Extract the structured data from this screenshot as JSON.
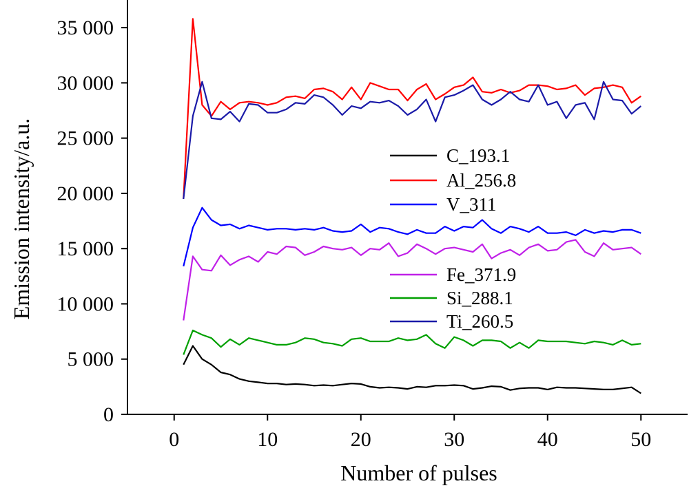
{
  "chart_data": {
    "type": "line",
    "title": "",
    "xlabel": "Number of pulses",
    "ylabel": "Emission intensity/a.u.",
    "xlim": [
      -5,
      55
    ],
    "ylim": [
      0,
      37500
    ],
    "xticks": [
      0,
      10,
      20,
      30,
      40,
      50
    ],
    "xtick_labels": [
      "0",
      "10",
      "20",
      "30",
      "40",
      "50"
    ],
    "yticks": [
      0,
      5000,
      10000,
      15000,
      20000,
      25000,
      30000,
      35000
    ],
    "ytick_labels": [
      "0",
      "5 000",
      "10 000",
      "15 000",
      "20 000",
      "25 000",
      "30 000",
      "35 000"
    ],
    "grid": false,
    "legend_placement": "inside, two groups (upper-center and middle-center)",
    "x": [
      1,
      2,
      3,
      4,
      5,
      6,
      7,
      8,
      9,
      10,
      11,
      12,
      13,
      14,
      15,
      16,
      17,
      18,
      19,
      20,
      21,
      22,
      23,
      24,
      25,
      26,
      27,
      28,
      29,
      30,
      31,
      32,
      33,
      34,
      35,
      36,
      37,
      38,
      39,
      40,
      41,
      42,
      43,
      44,
      45,
      46,
      47,
      48,
      49,
      50
    ],
    "series": [
      {
        "name": "C_193.1",
        "color": "#000000",
        "values": [
          4500,
          6200,
          5000,
          4500,
          3800,
          3600,
          3200,
          3000,
          2900,
          2800,
          2800,
          2700,
          2750,
          2700,
          2600,
          2650,
          2600,
          2700,
          2800,
          2750,
          2500,
          2400,
          2450,
          2400,
          2300,
          2500,
          2450,
          2600,
          2600,
          2650,
          2600,
          2300,
          2400,
          2550,
          2500,
          2200,
          2350,
          2400,
          2400,
          2250,
          2450,
          2400,
          2400,
          2350,
          2300,
          2250,
          2250,
          2350,
          2450,
          1900
        ]
      },
      {
        "name": "Al_256.8",
        "color": "#ff0000",
        "values": [
          19500,
          35800,
          28000,
          27000,
          28300,
          27600,
          28200,
          28300,
          28200,
          28000,
          28200,
          28700,
          28800,
          28600,
          29400,
          29500,
          29200,
          28500,
          29600,
          28500,
          30000,
          29700,
          29400,
          29400,
          28400,
          29400,
          29900,
          28500,
          29000,
          29600,
          29800,
          30500,
          29200,
          29100,
          29400,
          29100,
          29300,
          29800,
          29800,
          29700,
          29400,
          29500,
          29800,
          28900,
          29500,
          29600,
          29800,
          29600,
          28200,
          28800
        ]
      },
      {
        "name": "V_311",
        "color": "#0000ff",
        "values": [
          13400,
          16900,
          18700,
          17600,
          17100,
          17200,
          16800,
          17100,
          16900,
          16700,
          16800,
          16800,
          16700,
          16800,
          16700,
          16900,
          16600,
          16500,
          16600,
          17200,
          16500,
          16900,
          16800,
          16500,
          16300,
          16700,
          16400,
          16400,
          17000,
          16600,
          17000,
          16900,
          17600,
          16800,
          16400,
          17000,
          16800,
          16500,
          17000,
          16400,
          16400,
          16500,
          16200,
          16700,
          16400,
          16600,
          16500,
          16700,
          16700,
          16400
        ]
      },
      {
        "name": "Fe_371.9",
        "color": "#c020e8",
        "values": [
          8500,
          14300,
          13100,
          13000,
          14400,
          13500,
          14000,
          14300,
          13800,
          14700,
          14500,
          15200,
          15100,
          14400,
          14700,
          15200,
          15000,
          14900,
          15100,
          14400,
          15000,
          14900,
          15500,
          14300,
          14600,
          15400,
          15000,
          14500,
          15000,
          15100,
          14900,
          14700,
          15400,
          14100,
          14600,
          14900,
          14400,
          15100,
          15400,
          14800,
          14900,
          15600,
          15800,
          14700,
          14300,
          15500,
          14900,
          15000,
          15100,
          14500
        ]
      },
      {
        "name": "Si_288.1",
        "color": "#00a000",
        "values": [
          5400,
          7600,
          7200,
          6900,
          6100,
          6800,
          6300,
          6900,
          6700,
          6500,
          6300,
          6300,
          6500,
          6900,
          6800,
          6500,
          6400,
          6200,
          6800,
          6900,
          6600,
          6600,
          6600,
          6900,
          6700,
          6800,
          7200,
          6400,
          6000,
          7000,
          6700,
          6200,
          6700,
          6700,
          6600,
          6000,
          6500,
          6000,
          6700,
          6600,
          6600,
          6600,
          6500,
          6400,
          6600,
          6500,
          6300,
          6700,
          6300,
          6400
        ]
      },
      {
        "name": "Ti_260.5",
        "color": "#1a1aa8",
        "values": [
          19500,
          27000,
          30100,
          26800,
          26700,
          27400,
          26500,
          28100,
          28000,
          27300,
          27300,
          27600,
          28200,
          28100,
          28900,
          28700,
          28000,
          27100,
          27900,
          27700,
          28300,
          28200,
          28400,
          27900,
          27100,
          27600,
          28500,
          26500,
          28700,
          28900,
          29300,
          29800,
          28500,
          28000,
          28500,
          29200,
          28500,
          28300,
          29800,
          28000,
          28300,
          26800,
          28000,
          28200,
          26700,
          30100,
          28500,
          28400,
          27200,
          27900
        ]
      }
    ]
  }
}
